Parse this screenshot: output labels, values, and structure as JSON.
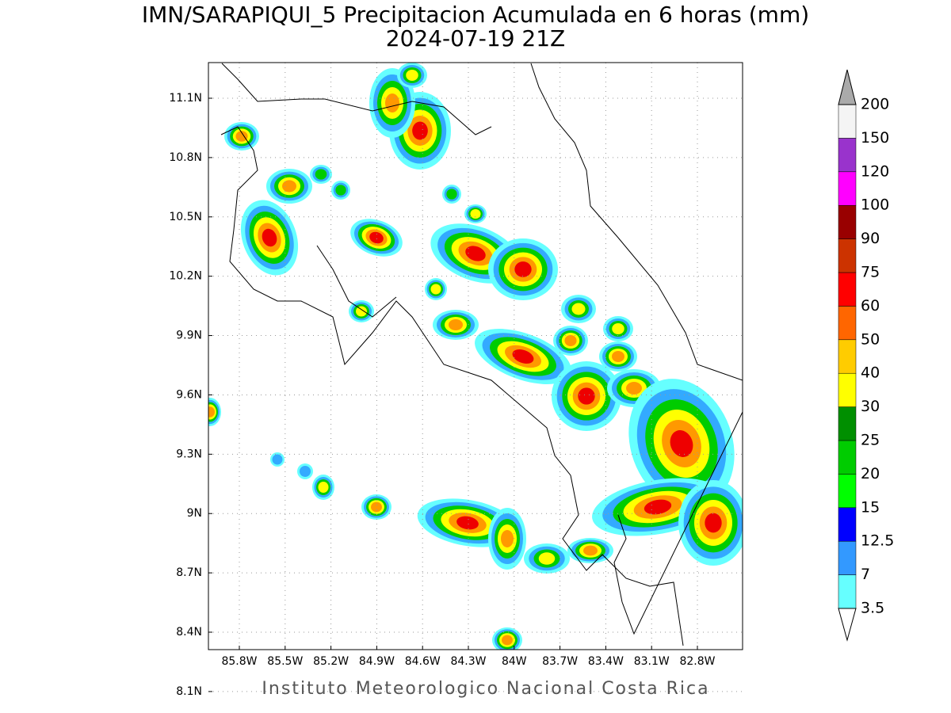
{
  "title": "IMN/SARAPIQUI_5 Precipitacion Acumulada en 6 horas (mm)",
  "subtitle": "2024-07-19 21Z",
  "footer": "Instituto Meteorologico Nacional Costa Rica",
  "map": {
    "grid": true,
    "lat_ticks": [
      {
        "value": 11.1,
        "label": "11.1N"
      },
      {
        "value": 10.8,
        "label": "10.8N"
      },
      {
        "value": 10.5,
        "label": "10.5N"
      },
      {
        "value": 10.2,
        "label": "10.2N"
      },
      {
        "value": 9.9,
        "label": "9.9N"
      },
      {
        "value": 9.6,
        "label": "9.6N"
      },
      {
        "value": 9.3,
        "label": "9.3N"
      },
      {
        "value": 9,
        "label": "9N"
      },
      {
        "value": 8.7,
        "label": "8.7N"
      },
      {
        "value": 8.4,
        "label": "8.4N"
      },
      {
        "value": 8.1,
        "label": "8.1N"
      }
    ],
    "lon_ticks": [
      {
        "value": -85.8,
        "label": "85.8W"
      },
      {
        "value": -85.5,
        "label": "85.5W"
      },
      {
        "value": -85.2,
        "label": "85.2W"
      },
      {
        "value": -84.9,
        "label": "84.9W"
      },
      {
        "value": -84.6,
        "label": "84.6W"
      },
      {
        "value": -84.3,
        "label": "84.3W"
      },
      {
        "value": -84,
        "label": "84W"
      },
      {
        "value": -83.7,
        "label": "83.7W"
      },
      {
        "value": -83.4,
        "label": "83.4W"
      },
      {
        "value": -83.1,
        "label": "83.1W"
      },
      {
        "value": -82.8,
        "label": "82.8W"
      }
    ]
  },
  "colorbar": {
    "levels": [
      3.5,
      7,
      12.5,
      15,
      20,
      25,
      30,
      40,
      50,
      60,
      75,
      90,
      100,
      120,
      150,
      200
    ],
    "colors": [
      "#66ffff",
      "#3399ff",
      "#0000ff",
      "#00ff00",
      "#00cc00",
      "#008f00",
      "#ffff00",
      "#ffcc00",
      "#ff6600",
      "#ff0000",
      "#cc3300",
      "#990000",
      "#ff00ff",
      "#9933cc",
      "#f4f4f4"
    ],
    "under_color": "#ffffff",
    "over_color": "#aaaaaa"
  }
}
